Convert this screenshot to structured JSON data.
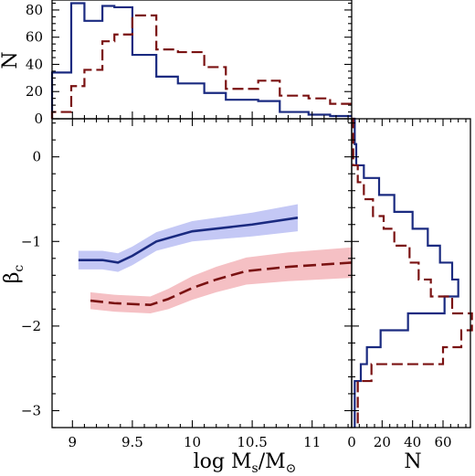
{
  "colors": {
    "blue": "#1a2a80",
    "blue_band": "#c4c8f5",
    "red": "#7a1212",
    "red_band": "#f5c0c4"
  },
  "labels": {
    "main_x": "log M",
    "main_x_sub": "s",
    "main_x_tail": "/M",
    "main_x_sun_sub": "⊙",
    "main_y": "β",
    "main_y_sub": "c",
    "top_y": "N",
    "right_x": "N"
  },
  "chart_data": [
    {
      "id": "main",
      "type": "line",
      "xlabel": "log Ms/M⊙",
      "ylabel": "βc",
      "xlim": [
        8.83,
        11.33
      ],
      "ylim": [
        -3.2,
        0.45
      ],
      "x_ticks": [
        9,
        9.5,
        10,
        10.5,
        11
      ],
      "x_tick_labels": [
        "9",
        "9.5",
        "10",
        "10.5",
        "11"
      ],
      "y_ticks": [
        0,
        -1,
        -2,
        -3
      ],
      "y_tick_labels": [
        "0",
        "−1",
        "−2",
        "−3"
      ],
      "series": [
        {
          "style": "solid",
          "color_key": "blue",
          "x": [
            9.05,
            9.25,
            9.38,
            9.5,
            9.7,
            10.0,
            10.5,
            10.88
          ],
          "y": [
            -1.22,
            -1.22,
            -1.25,
            -1.17,
            -1.0,
            -0.88,
            -0.8,
            -0.72
          ],
          "band": [
            0.11,
            0.11,
            0.11,
            0.11,
            0.11,
            0.12,
            0.14,
            0.16
          ]
        },
        {
          "style": "dashed",
          "color_key": "red",
          "x": [
            9.15,
            9.35,
            9.65,
            9.8,
            10.0,
            10.2,
            10.45,
            10.8,
            11.33
          ],
          "y": [
            -1.7,
            -1.73,
            -1.75,
            -1.68,
            -1.55,
            -1.45,
            -1.35,
            -1.3,
            -1.25
          ],
          "band": [
            0.1,
            0.1,
            0.1,
            0.12,
            0.14,
            0.15,
            0.16,
            0.17,
            0.18
          ]
        }
      ]
    },
    {
      "id": "top",
      "type": "step-histogram",
      "ylabel": "N",
      "xlim": [
        8.83,
        11.33
      ],
      "ylim": [
        0,
        86
      ],
      "y_ticks": [
        0,
        20,
        40,
        60,
        80
      ],
      "y_tick_labels": [
        "0",
        "20",
        "40",
        "60",
        "80"
      ],
      "series": [
        {
          "style": "solid",
          "color_key": "blue",
          "edges": [
            8.83,
            8.99,
            9.1,
            9.25,
            9.35,
            9.5,
            9.7,
            9.88,
            10.1,
            10.28,
            10.55,
            10.73,
            10.97,
            11.15,
            11.33
          ],
          "counts": [
            34,
            85,
            72,
            83,
            82,
            47,
            31,
            26,
            19,
            14,
            13,
            5,
            3,
            2
          ]
        },
        {
          "style": "dashed",
          "color_key": "red",
          "edges": [
            8.83,
            8.99,
            9.1,
            9.25,
            9.35,
            9.5,
            9.7,
            9.88,
            10.1,
            10.28,
            10.55,
            10.73,
            10.97,
            11.15,
            11.33
          ],
          "counts": [
            5,
            24,
            36,
            57,
            62,
            76,
            51,
            49,
            38,
            22,
            28,
            17,
            15,
            11
          ]
        }
      ]
    },
    {
      "id": "right",
      "type": "step-histogram-horizontal",
      "xlabel": "N",
      "xlim": [
        0,
        78
      ],
      "x_ticks": [
        0,
        20,
        40,
        60
      ],
      "x_tick_labels": [
        "0",
        "20",
        "40",
        "60"
      ],
      "ylim": [
        -3.2,
        0.45
      ],
      "series": [
        {
          "style": "solid",
          "color_key": "blue",
          "edges": [
            0.45,
            0.15,
            -0.1,
            -0.25,
            -0.45,
            -0.65,
            -0.85,
            -1.05,
            -1.25,
            -1.45,
            -1.65,
            -1.85,
            -2.05,
            -2.25,
            -2.45,
            -2.65,
            -3.2
          ],
          "counts": [
            2,
            3,
            8,
            18,
            28,
            40,
            50,
            58,
            66,
            70,
            61,
            37,
            19,
            10,
            6,
            2
          ]
        },
        {
          "style": "dashed",
          "color_key": "red",
          "edges": [
            0.45,
            -0.1,
            -0.3,
            -0.5,
            -0.7,
            -0.85,
            -1.05,
            -1.25,
            -1.45,
            -1.65,
            -1.85,
            -2.05,
            -2.25,
            -2.45,
            -2.65,
            -3.2
          ],
          "counts": [
            1,
            4,
            8,
            14,
            21,
            28,
            38,
            44,
            52,
            66,
            79,
            72,
            60,
            13,
            4
          ]
        }
      ]
    }
  ]
}
